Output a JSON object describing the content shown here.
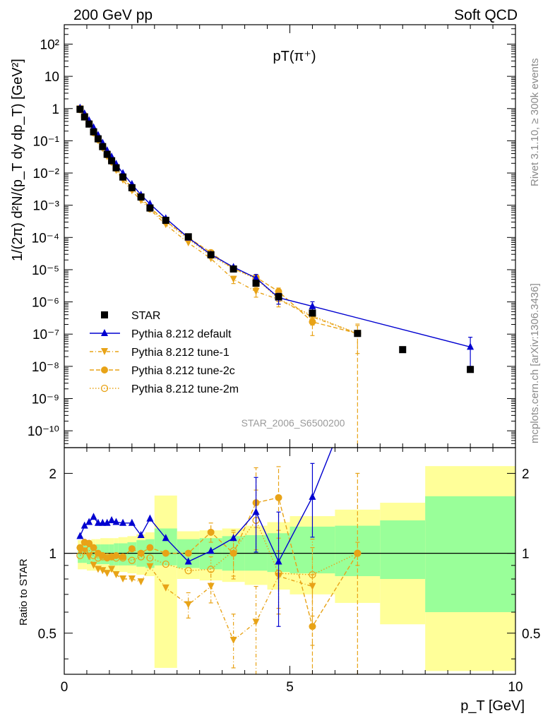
{
  "header": {
    "left": "200 GeV pp",
    "right": "Soft QCD",
    "right_side_info": "Rivet 3.1.10, ≥ 300k events",
    "right_side_url": "mcplots.cern.ch [arXiv:1306.3436]",
    "plot_title": "pT(π⁺)",
    "analysis_id": "STAR_2006_S6500200"
  },
  "axes": {
    "main_ylabel": "1/(2π) d²N/(p_T dy dp_T) [GeV²]",
    "ratio_ylabel": "Ratio to STAR",
    "xlabel": "p_T [GeV]",
    "x_ticks": [
      "0",
      "5",
      "10"
    ],
    "ratio_ticks": [
      "0.5",
      "1",
      "2"
    ],
    "main_ticks": [
      "10⁻¹⁰",
      "10⁻⁹",
      "10⁻⁸",
      "10⁻⁷",
      "10⁻⁶",
      "10⁻⁵",
      "10⁻⁴",
      "10⁻³",
      "10⁻²",
      "10⁻¹",
      "1",
      "10",
      "10²"
    ]
  },
  "colors": {
    "data": "#000000",
    "default": "#0000d0",
    "tune": "#e8a317",
    "band_inner": "#99ff99",
    "band_outer": "#ffff99"
  },
  "legend": {
    "position": "lower-left",
    "entries": [
      {
        "label": "STAR",
        "style": "square"
      },
      {
        "label": "Pythia 8.212 default",
        "style": "triangle-up"
      },
      {
        "label": "Pythia 8.212 tune-1",
        "style": "triangle-down"
      },
      {
        "label": "Pythia 8.212 tune-2c",
        "style": "circle"
      },
      {
        "label": "Pythia 8.212 tune-2m",
        "style": "circle-open"
      }
    ]
  },
  "chart_data": [
    {
      "type": "scatter",
      "panel": "main",
      "xlabel": "p_T [GeV]",
      "ylabel": "1/(2π) d²N/(p_T dy dp_T) [GeV²]",
      "xlim": [
        0,
        10
      ],
      "ylim": [
        3e-11,
        400
      ],
      "yscale": "log",
      "x": [
        0.35,
        0.45,
        0.55,
        0.65,
        0.75,
        0.85,
        0.95,
        1.05,
        1.15,
        1.3,
        1.5,
        1.7,
        1.9,
        2.25,
        2.75,
        3.25,
        3.75,
        4.25,
        4.75,
        5.5,
        6.5,
        7.5,
        9.0
      ],
      "series": [
        {
          "name": "STAR",
          "marker": "square",
          "values": [
            0.95,
            0.55,
            0.33,
            0.19,
            0.115,
            0.066,
            0.038,
            0.024,
            0.0145,
            0.0075,
            0.0035,
            0.0018,
            0.00082,
            0.00034,
            0.000105,
            2.9e-05,
            1.05e-05,
            3.8e-06,
            1.45e-06,
            4.5e-07,
            1.05e-07,
            3.3e-08,
            8e-09
          ]
        },
        {
          "name": "Pythia 8.212 default",
          "marker": "triangle-up",
          "values": [
            1.05,
            0.7,
            0.43,
            0.26,
            0.15,
            0.086,
            0.05,
            0.032,
            0.019,
            0.0098,
            0.0045,
            0.0021,
            0.0011,
            0.00039,
            9.8e-05,
            2.95e-05,
            1.2e-05,
            5.5e-06,
            1.35e-06,
            7.3e-07,
            null,
            null,
            4e-08
          ],
          "err_low": [
            null,
            null,
            null,
            null,
            null,
            null,
            null,
            null,
            null,
            null,
            null,
            null,
            null,
            null,
            null,
            null,
            null,
            1.6e-06,
            5e-07,
            1.8e-07,
            null,
            null,
            3e-08
          ],
          "err_high": [
            null,
            null,
            null,
            null,
            null,
            null,
            null,
            null,
            null,
            null,
            null,
            null,
            null,
            null,
            null,
            null,
            null,
            1.6e-06,
            5e-07,
            2.8e-07,
            null,
            null,
            4e-08
          ]
        },
        {
          "name": "Pythia 8.212 tune-1",
          "marker": "triangle-down",
          "values": [
            0.97,
            0.56,
            0.32,
            0.17,
            0.1,
            0.057,
            0.032,
            0.021,
            0.012,
            0.006,
            0.0028,
            0.0014,
            0.00074,
            0.00025,
            6.8e-05,
            2.2e-05,
            5e-06,
            2.1e-06,
            1.2e-06,
            3.4e-07,
            1.05e-07,
            null,
            null
          ],
          "err_low": [
            null,
            null,
            null,
            null,
            null,
            null,
            null,
            null,
            null,
            null,
            null,
            null,
            null,
            null,
            null,
            null,
            1.3e-06,
            7e-07,
            5e-07,
            1.5e-07,
            8e-08,
            null,
            null
          ],
          "err_high": [
            null,
            null,
            null,
            null,
            null,
            null,
            null,
            null,
            null,
            null,
            null,
            null,
            null,
            null,
            null,
            null,
            1.3e-06,
            7e-07,
            5e-07,
            1.5e-07,
            8e-08,
            null,
            null
          ]
        },
        {
          "name": "Pythia 8.212 tune-2c",
          "marker": "circle",
          "values": [
            1.0,
            0.61,
            0.36,
            0.2,
            0.115,
            0.065,
            0.036,
            0.023,
            0.014,
            0.0073,
            0.0036,
            0.0018,
            0.00085,
            0.00032,
            9.9e-05,
            3.4e-05,
            1.05e-05,
            5.8e-06,
            2.1e-06,
            2.4e-07,
            1.05e-07,
            null,
            null
          ],
          "err_low": [
            null,
            null,
            null,
            null,
            null,
            null,
            null,
            null,
            null,
            null,
            null,
            null,
            null,
            null,
            null,
            null,
            2e-06,
            1.2e-06,
            6e-07,
            1.5e-07,
            1.05e-07,
            null,
            null
          ],
          "err_high": [
            null,
            null,
            null,
            null,
            null,
            null,
            null,
            null,
            null,
            null,
            null,
            null,
            null,
            null,
            null,
            null,
            2e-06,
            1.2e-06,
            6e-07,
            1.5e-07,
            1e-07,
            null,
            null
          ]
        },
        {
          "name": "Pythia 8.212 tune-2m",
          "marker": "circle-open",
          "values": [
            0.93,
            0.55,
            0.34,
            0.18,
            0.11,
            0.064,
            0.037,
            0.023,
            0.014,
            0.0072,
            0.0033,
            0.0017,
            0.00078,
            0.00031,
            9e-05,
            2.7e-05,
            1.07e-05,
            5.2e-06,
            1.25e-06,
            3.7e-07,
            1.05e-07,
            null,
            null
          ],
          "err_low": [
            null,
            null,
            null,
            null,
            null,
            null,
            null,
            null,
            null,
            null,
            null,
            null,
            null,
            null,
            null,
            null,
            null,
            1e-06,
            4e-07,
            1.3e-07,
            null,
            null,
            null
          ],
          "err_high": [
            null,
            null,
            null,
            null,
            null,
            null,
            null,
            null,
            null,
            null,
            null,
            null,
            null,
            null,
            null,
            null,
            null,
            1e-06,
            4e-07,
            1.3e-07,
            null,
            null,
            null
          ]
        }
      ]
    },
    {
      "type": "scatter",
      "panel": "ratio",
      "ylabel": "Ratio to STAR",
      "xlim": [
        0,
        10
      ],
      "ylim": [
        0.35,
        2.5
      ],
      "yscale": "log",
      "x": [
        0.35,
        0.45,
        0.55,
        0.65,
        0.75,
        0.85,
        0.95,
        1.05,
        1.15,
        1.3,
        1.5,
        1.7,
        1.9,
        2.25,
        2.75,
        3.25,
        3.75,
        4.25,
        4.75,
        5.5,
        6.5
      ],
      "uncertainty_bands": {
        "edges": [
          0.3,
          0.4,
          0.5,
          0.6,
          0.7,
          0.8,
          0.9,
          1.0,
          1.1,
          1.2,
          1.4,
          1.6,
          1.8,
          2.0,
          2.5,
          3.0,
          3.5,
          4.0,
          4.5,
          5.0,
          6.0,
          7.0,
          8.0,
          10.0
        ],
        "inner_low": [
          0.92,
          0.92,
          0.91,
          0.91,
          0.91,
          0.91,
          0.91,
          0.9,
          0.9,
          0.9,
          0.9,
          0.89,
          0.88,
          0.9,
          0.88,
          0.87,
          0.86,
          0.86,
          0.85,
          0.84,
          0.82,
          0.8,
          0.6,
          0.6
        ],
        "inner_high": [
          1.07,
          1.07,
          1.07,
          1.07,
          1.08,
          1.08,
          1.08,
          1.08,
          1.09,
          1.09,
          1.1,
          1.12,
          1.13,
          1.24,
          1.13,
          1.14,
          1.16,
          1.17,
          1.19,
          1.26,
          1.27,
          1.33,
          1.64,
          1.64
        ],
        "outer_low": [
          0.87,
          0.87,
          0.86,
          0.86,
          0.86,
          0.86,
          0.85,
          0.85,
          0.85,
          0.85,
          0.84,
          0.83,
          0.82,
          0.37,
          0.8,
          0.79,
          0.78,
          0.76,
          0.73,
          0.7,
          0.65,
          0.54,
          0.36,
          0.36
        ],
        "outer_high": [
          1.12,
          1.12,
          1.12,
          1.13,
          1.13,
          1.14,
          1.14,
          1.14,
          1.14,
          1.15,
          1.16,
          1.18,
          1.2,
          1.65,
          1.21,
          1.22,
          1.24,
          1.27,
          1.31,
          1.38,
          1.46,
          1.55,
          2.13,
          2.13
        ]
      },
      "series": [
        {
          "name": "Pythia 8.212 default",
          "values": [
            1.16,
            1.27,
            1.31,
            1.37,
            1.3,
            1.3,
            1.3,
            1.33,
            1.31,
            1.3,
            1.3,
            1.17,
            1.35,
            1.14,
            0.93,
            1.02,
            1.14,
            1.43,
            0.93,
            1.63,
            null
          ],
          "err_low": [
            null,
            null,
            null,
            null,
            null,
            null,
            null,
            null,
            null,
            null,
            null,
            null,
            null,
            null,
            null,
            null,
            null,
            0.42,
            0.4,
            0.48,
            null
          ],
          "err_high": [
            null,
            null,
            null,
            null,
            null,
            null,
            null,
            null,
            null,
            null,
            null,
            null,
            null,
            null,
            null,
            null,
            null,
            0.5,
            0.5,
            0.55,
            null
          ],
          "extends_beyond_ylim_after": 6.5
        },
        {
          "name": "Pythia 8.212 tune-1",
          "values": [
            1.02,
            1.02,
            0.97,
            0.9,
            0.87,
            0.86,
            0.84,
            0.87,
            0.83,
            0.8,
            0.8,
            0.78,
            0.89,
            0.74,
            0.64,
            0.75,
            0.47,
            0.55,
            0.82,
            0.75,
            null
          ],
          "err_low": [
            null,
            null,
            null,
            null,
            null,
            null,
            null,
            null,
            null,
            null,
            null,
            null,
            null,
            null,
            0.07,
            0.1,
            0.1,
            0.2,
            0.2,
            0.3,
            null
          ],
          "err_high": [
            null,
            null,
            null,
            null,
            null,
            null,
            null,
            null,
            null,
            null,
            null,
            null,
            null,
            null,
            0.07,
            0.1,
            0.12,
            0.2,
            0.2,
            0.3,
            null
          ]
        },
        {
          "name": "Pythia 8.212 tune-2c",
          "values": [
            1.05,
            1.1,
            1.09,
            1.05,
            1.0,
            0.98,
            0.96,
            0.97,
            0.98,
            0.97,
            1.04,
            1.0,
            1.05,
            1.0,
            1.0,
            1.2,
            1.0,
            1.55,
            1.62,
            0.53,
            1.0
          ],
          "err_low": [
            null,
            null,
            null,
            null,
            null,
            null,
            null,
            null,
            null,
            null,
            null,
            null,
            null,
            null,
            null,
            0.1,
            0.2,
            0.3,
            0.4,
            0.2,
            0.65
          ],
          "err_high": [
            null,
            null,
            null,
            null,
            null,
            null,
            null,
            null,
            null,
            null,
            null,
            null,
            null,
            null,
            null,
            0.1,
            0.2,
            0.55,
            0.5,
            0.3,
            1.0
          ]
        },
        {
          "name": "Pythia 8.212 tune-2m",
          "values": [
            0.98,
            1.02,
            1.03,
            0.98,
            0.96,
            0.97,
            0.97,
            0.97,
            0.96,
            0.96,
            0.94,
            0.97,
            0.96,
            0.91,
            0.86,
            0.87,
            1.02,
            1.33,
            0.84,
            0.83,
            1.0
          ],
          "err_low": [
            null,
            null,
            null,
            null,
            null,
            null,
            null,
            null,
            null,
            null,
            null,
            null,
            null,
            null,
            null,
            0.1,
            0.2,
            0.3,
            0.25,
            0.25,
            0.1
          ],
          "err_high": [
            null,
            null,
            null,
            null,
            null,
            null,
            null,
            null,
            null,
            null,
            null,
            null,
            null,
            null,
            null,
            0.1,
            0.2,
            0.4,
            0.3,
            0.3,
            0.1
          ]
        }
      ]
    }
  ]
}
